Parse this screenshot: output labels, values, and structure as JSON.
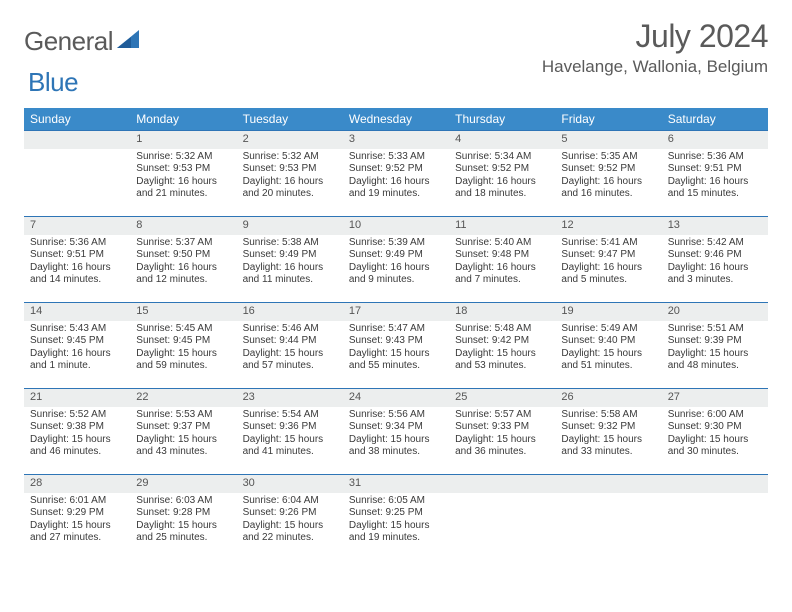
{
  "brand": {
    "name1": "General",
    "name2": "Blue",
    "accent": "#2e75b6"
  },
  "title": "July 2024",
  "location": "Havelange, Wallonia, Belgium",
  "header_bg": "#3a8ac9",
  "daybar_bg": "#eceeee",
  "rule_color": "#2e75b6",
  "weekdays": [
    "Sunday",
    "Monday",
    "Tuesday",
    "Wednesday",
    "Thursday",
    "Friday",
    "Saturday"
  ],
  "weeks": [
    [
      null,
      {
        "n": "1",
        "sr": "5:32 AM",
        "ss": "9:53 PM",
        "dl": "16 hours and 21 minutes."
      },
      {
        "n": "2",
        "sr": "5:32 AM",
        "ss": "9:53 PM",
        "dl": "16 hours and 20 minutes."
      },
      {
        "n": "3",
        "sr": "5:33 AM",
        "ss": "9:52 PM",
        "dl": "16 hours and 19 minutes."
      },
      {
        "n": "4",
        "sr": "5:34 AM",
        "ss": "9:52 PM",
        "dl": "16 hours and 18 minutes."
      },
      {
        "n": "5",
        "sr": "5:35 AM",
        "ss": "9:52 PM",
        "dl": "16 hours and 16 minutes."
      },
      {
        "n": "6",
        "sr": "5:36 AM",
        "ss": "9:51 PM",
        "dl": "16 hours and 15 minutes."
      }
    ],
    [
      {
        "n": "7",
        "sr": "5:36 AM",
        "ss": "9:51 PM",
        "dl": "16 hours and 14 minutes."
      },
      {
        "n": "8",
        "sr": "5:37 AM",
        "ss": "9:50 PM",
        "dl": "16 hours and 12 minutes."
      },
      {
        "n": "9",
        "sr": "5:38 AM",
        "ss": "9:49 PM",
        "dl": "16 hours and 11 minutes."
      },
      {
        "n": "10",
        "sr": "5:39 AM",
        "ss": "9:49 PM",
        "dl": "16 hours and 9 minutes."
      },
      {
        "n": "11",
        "sr": "5:40 AM",
        "ss": "9:48 PM",
        "dl": "16 hours and 7 minutes."
      },
      {
        "n": "12",
        "sr": "5:41 AM",
        "ss": "9:47 PM",
        "dl": "16 hours and 5 minutes."
      },
      {
        "n": "13",
        "sr": "5:42 AM",
        "ss": "9:46 PM",
        "dl": "16 hours and 3 minutes."
      }
    ],
    [
      {
        "n": "14",
        "sr": "5:43 AM",
        "ss": "9:45 PM",
        "dl": "16 hours and 1 minute."
      },
      {
        "n": "15",
        "sr": "5:45 AM",
        "ss": "9:45 PM",
        "dl": "15 hours and 59 minutes."
      },
      {
        "n": "16",
        "sr": "5:46 AM",
        "ss": "9:44 PM",
        "dl": "15 hours and 57 minutes."
      },
      {
        "n": "17",
        "sr": "5:47 AM",
        "ss": "9:43 PM",
        "dl": "15 hours and 55 minutes."
      },
      {
        "n": "18",
        "sr": "5:48 AM",
        "ss": "9:42 PM",
        "dl": "15 hours and 53 minutes."
      },
      {
        "n": "19",
        "sr": "5:49 AM",
        "ss": "9:40 PM",
        "dl": "15 hours and 51 minutes."
      },
      {
        "n": "20",
        "sr": "5:51 AM",
        "ss": "9:39 PM",
        "dl": "15 hours and 48 minutes."
      }
    ],
    [
      {
        "n": "21",
        "sr": "5:52 AM",
        "ss": "9:38 PM",
        "dl": "15 hours and 46 minutes."
      },
      {
        "n": "22",
        "sr": "5:53 AM",
        "ss": "9:37 PM",
        "dl": "15 hours and 43 minutes."
      },
      {
        "n": "23",
        "sr": "5:54 AM",
        "ss": "9:36 PM",
        "dl": "15 hours and 41 minutes."
      },
      {
        "n": "24",
        "sr": "5:56 AM",
        "ss": "9:34 PM",
        "dl": "15 hours and 38 minutes."
      },
      {
        "n": "25",
        "sr": "5:57 AM",
        "ss": "9:33 PM",
        "dl": "15 hours and 36 minutes."
      },
      {
        "n": "26",
        "sr": "5:58 AM",
        "ss": "9:32 PM",
        "dl": "15 hours and 33 minutes."
      },
      {
        "n": "27",
        "sr": "6:00 AM",
        "ss": "9:30 PM",
        "dl": "15 hours and 30 minutes."
      }
    ],
    [
      {
        "n": "28",
        "sr": "6:01 AM",
        "ss": "9:29 PM",
        "dl": "15 hours and 27 minutes."
      },
      {
        "n": "29",
        "sr": "6:03 AM",
        "ss": "9:28 PM",
        "dl": "15 hours and 25 minutes."
      },
      {
        "n": "30",
        "sr": "6:04 AM",
        "ss": "9:26 PM",
        "dl": "15 hours and 22 minutes."
      },
      {
        "n": "31",
        "sr": "6:05 AM",
        "ss": "9:25 PM",
        "dl": "15 hours and 19 minutes."
      },
      null,
      null,
      null
    ]
  ],
  "labels": {
    "sunrise": "Sunrise:",
    "sunset": "Sunset:",
    "daylight": "Daylight:"
  }
}
